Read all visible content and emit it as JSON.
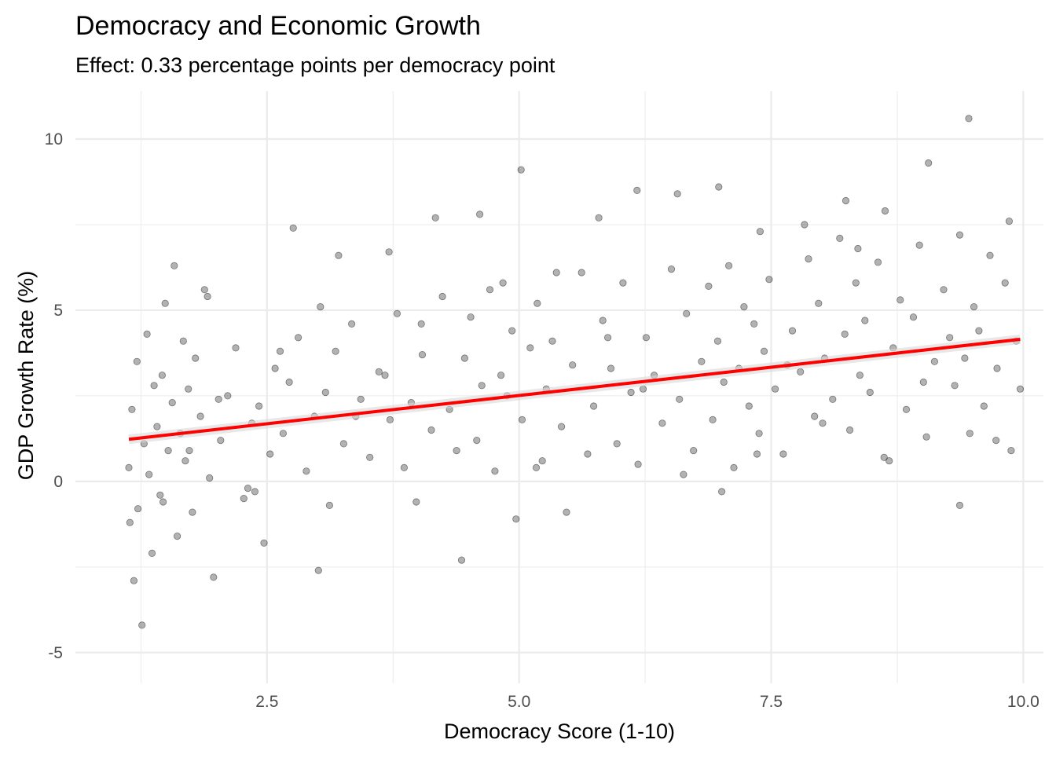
{
  "chart_data": {
    "type": "scatter",
    "title": "Democracy and Economic Growth",
    "subtitle": "Effect: 0.33 percentage points per democracy point",
    "xlabel": "Democracy Score (1-10)",
    "ylabel": "GDP Growth Rate (%)",
    "xlim": [
      0.6,
      10.2
    ],
    "ylim": [
      -5.9,
      11.4
    ],
    "x_ticks": [
      2.5,
      5.0,
      7.5,
      10.0
    ],
    "x_tick_labels": [
      "2.5",
      "5.0",
      "7.5",
      "10.0"
    ],
    "y_ticks": [
      -5,
      0,
      5,
      10
    ],
    "y_tick_labels": [
      "-5",
      "0",
      "5",
      "10"
    ],
    "grid": true,
    "theme": "minimal",
    "colors": {
      "points": "#000000",
      "line": "#ff0000",
      "grid": "#ebebeb",
      "text": "#4d4d4d"
    },
    "series": [
      {
        "kind": "points",
        "x": [
          1.13,
          1.14,
          1.16,
          1.21,
          1.22,
          1.28,
          1.31,
          1.33,
          1.36,
          1.38,
          1.41,
          1.44,
          1.46,
          1.49,
          1.52,
          1.56,
          1.61,
          1.64,
          1.67,
          1.69,
          1.72,
          1.76,
          1.79,
          1.84,
          1.88,
          1.93,
          1.97,
          2.04,
          2.11,
          2.19,
          2.27,
          2.35,
          2.42,
          2.47,
          2.53,
          2.58,
          2.66,
          2.72,
          2.81,
          2.89,
          2.97,
          3.03,
          3.08,
          3.12,
          3.18,
          3.26,
          3.34,
          3.43,
          3.52,
          3.61,
          3.72,
          3.79,
          3.86,
          3.93,
          3.98,
          4.04,
          4.13,
          4.24,
          4.31,
          4.38,
          4.46,
          4.52,
          4.58,
          4.63,
          4.71,
          4.76,
          4.82,
          4.88,
          4.93,
          4.97,
          5.03,
          5.11,
          5.18,
          5.23,
          5.27,
          5.33,
          5.42,
          5.53,
          5.62,
          5.68,
          5.74,
          5.83,
          5.91,
          5.97,
          6.03,
          6.11,
          6.18,
          6.26,
          6.34,
          6.42,
          6.51,
          6.59,
          6.66,
          6.73,
          6.81,
          6.88,
          6.92,
          6.97,
          7.03,
          7.08,
          7.13,
          7.18,
          7.23,
          7.28,
          7.33,
          7.38,
          7.43,
          7.48,
          7.54,
          7.62,
          7.71,
          7.79,
          7.87,
          7.93,
          7.97,
          8.03,
          8.11,
          8.18,
          8.23,
          8.28,
          8.34,
          8.38,
          8.43,
          8.48,
          8.56,
          8.62,
          8.71,
          8.78,
          8.84,
          8.91,
          8.97,
          9.04,
          9.12,
          9.21,
          9.27,
          9.32,
          9.37,
          9.42,
          9.47,
          9.51,
          9.56,
          9.61,
          9.67,
          9.74,
          9.82,
          9.88,
          9.93,
          9.97,
          1.18,
          1.47,
          1.73,
          2.02,
          2.38,
          2.63,
          3.01,
          3.38,
          3.67,
          4.03,
          4.43,
          4.84,
          5.17,
          5.47,
          5.88,
          6.23,
          6.63,
          7.01,
          7.36,
          7.66,
          8.01,
          8.36,
          8.67,
          9.01,
          9.37,
          9.73,
          1.26,
          1.58,
          1.91,
          2.31,
          2.76,
          3.21,
          3.71,
          4.17,
          4.61,
          5.02,
          5.37,
          5.79,
          6.17,
          6.57,
          6.98,
          7.39,
          7.83,
          8.24,
          8.63,
          9.06,
          9.46,
          9.86
        ],
        "y": [
          0.4,
          -1.2,
          2.1,
          3.5,
          -0.8,
          1.1,
          4.3,
          0.2,
          -2.1,
          2.8,
          1.6,
          -0.4,
          3.1,
          5.2,
          0.9,
          2.3,
          -1.6,
          1.4,
          4.1,
          0.6,
          2.7,
          -0.9,
          3.6,
          1.9,
          5.6,
          0.1,
          -2.8,
          1.2,
          2.5,
          3.9,
          -0.5,
          1.7,
          2.2,
          -1.8,
          0.8,
          3.3,
          1.4,
          2.9,
          4.2,
          0.3,
          1.9,
          5.1,
          2.6,
          -0.7,
          3.8,
          1.1,
          4.6,
          2.4,
          0.7,
          3.2,
          1.8,
          4.9,
          0.4,
          2.3,
          -0.6,
          3.7,
          1.5,
          5.4,
          2.1,
          0.9,
          3.6,
          4.8,
          1.2,
          2.8,
          5.6,
          0.3,
          3.1,
          2.5,
          4.4,
          -1.1,
          1.8,
          3.9,
          5.2,
          0.6,
          2.7,
          4.1,
          1.6,
          3.4,
          6.1,
          0.8,
          2.2,
          4.7,
          3.3,
          1.1,
          5.8,
          2.6,
          0.5,
          4.2,
          3.1,
          1.7,
          6.2,
          2.4,
          4.9,
          0.9,
          3.5,
          5.7,
          1.8,
          4.1,
          2.9,
          6.3,
          0.4,
          3.3,
          5.1,
          2.2,
          4.6,
          1.4,
          3.8,
          5.9,
          2.7,
          0.8,
          4.4,
          3.2,
          6.5,
          1.9,
          5.2,
          3.6,
          2.4,
          7.1,
          4.3,
          1.5,
          5.8,
          3.1,
          4.7,
          2.6,
          6.4,
          0.7,
          3.9,
          5.3,
          2.1,
          4.8,
          6.9,
          1.3,
          3.5,
          5.6,
          4.2,
          2.8,
          7.2,
          3.6,
          1.4,
          5.1,
          4.4,
          2.2,
          6.6,
          3.3,
          5.8,
          0.9,
          4.1,
          2.7,
          -2.9,
          -0.6,
          0.9,
          2.4,
          -0.3,
          3.8,
          -2.6,
          1.9,
          3.1,
          4.6,
          -2.3,
          5.8,
          0.4,
          -0.9,
          4.2,
          2.7,
          0.2,
          -0.3,
          0.8,
          3.4,
          1.7,
          6.8,
          0.6,
          2.9,
          -0.7,
          1.2,
          -4.2,
          6.3,
          5.4,
          -0.2,
          7.4,
          6.6,
          6.7,
          7.7,
          7.8,
          9.1,
          6.1,
          7.7,
          8.5,
          8.4,
          8.6,
          7.3,
          7.5,
          8.2,
          7.9,
          9.3,
          10.6,
          7.6
        ]
      },
      {
        "kind": "fit",
        "name": "",
        "x": [
          1.13,
          9.97
        ],
        "y": [
          1.23,
          4.15
        ]
      }
    ]
  }
}
